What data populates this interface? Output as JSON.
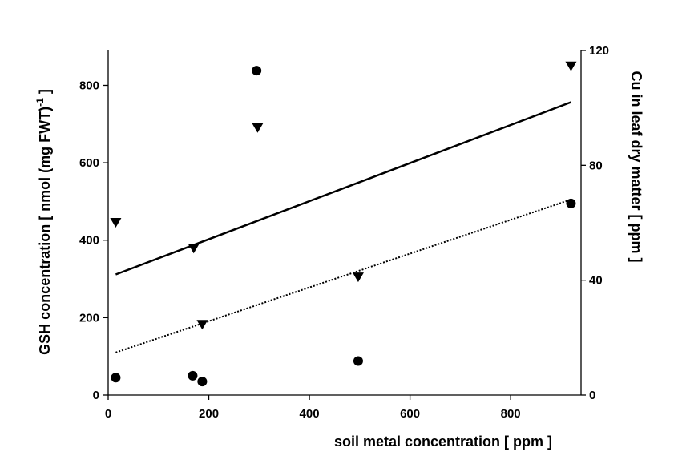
{
  "chart_data": {
    "type": "scatter",
    "title": "",
    "xlabel": "soil metal concentration [ ppm ]",
    "ylabel": "GSH concentration [ nmol (mg FWT)",
    "ylabel_sup": "-1",
    "ylabel_end": " ]",
    "y2label": "Cu in leaf dry matter [ ppm ]",
    "xlim": [
      0,
      940
    ],
    "ylim": [
      0,
      890
    ],
    "y2lim": [
      0,
      120
    ],
    "xticks": [
      "0",
      "200",
      "400",
      "600",
      "800"
    ],
    "xtick_values": [
      0,
      200,
      400,
      600,
      800
    ],
    "yticks": [
      "0",
      "200",
      "400",
      "600",
      "800"
    ],
    "ytick_values": [
      0,
      200,
      400,
      600,
      800
    ],
    "y2ticks": [
      "0",
      "40",
      "80",
      "120"
    ],
    "y2tick_values": [
      0,
      40,
      80,
      120
    ],
    "grid": false,
    "series": [
      {
        "marker": "circle",
        "axis": "left",
        "points": [
          {
            "x": 15,
            "y": 45
          },
          {
            "x": 168,
            "y": 50
          },
          {
            "x": 187,
            "y": 35
          },
          {
            "x": 295,
            "y": 838
          },
          {
            "x": 497,
            "y": 88
          },
          {
            "x": 920,
            "y": 495
          }
        ],
        "trend": {
          "style": "dotted",
          "x": [
            15,
            920
          ],
          "y": [
            110,
            505
          ]
        }
      },
      {
        "marker": "triangle-down",
        "axis": "right",
        "points": [
          {
            "x": 15,
            "y": 60
          },
          {
            "x": 170,
            "y": 51
          },
          {
            "x": 187,
            "y": 24.5
          },
          {
            "x": 297,
            "y": 93
          },
          {
            "x": 497,
            "y": 41
          },
          {
            "x": 920,
            "y": 114.5
          }
        ],
        "trend": {
          "style": "solid",
          "x": [
            15,
            920
          ],
          "y": [
            42,
            102
          ]
        }
      }
    ]
  }
}
